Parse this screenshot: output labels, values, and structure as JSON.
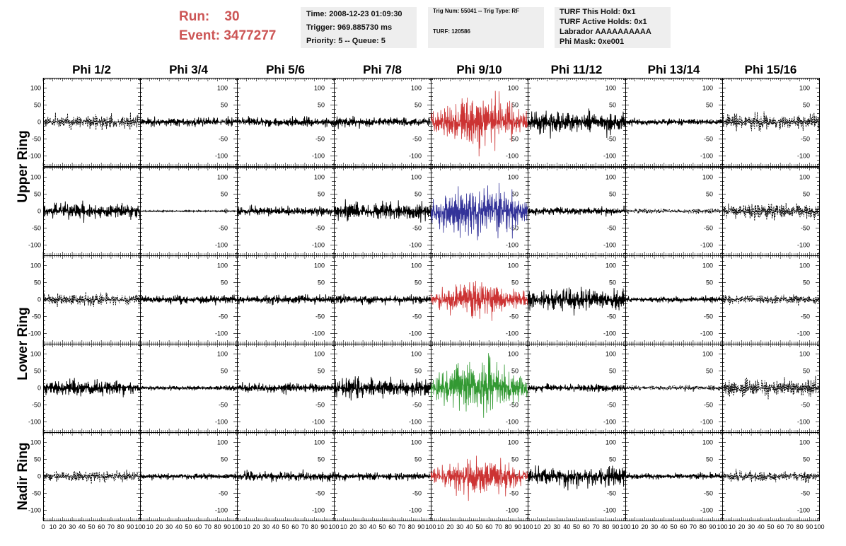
{
  "header": {
    "run_label": "Run:",
    "run_value": "30",
    "event_label": "Event:",
    "event_value": "3477277",
    "time_line": "Time: 2008-12-23 01:09:30",
    "trigger_line": "Trigger: 969.885730 ms",
    "priority_line": "Priority: 5 -- Queue: 5",
    "trig_line": "Trig Num: 55041 -- Trig Type: RF",
    "turf_line": "TURF: 120586",
    "turf_hold": "TURF This Hold: 0x1",
    "turf_active": "TURF Active Holds: 0x1",
    "labrador": "Labrador AAAAAAAAAA",
    "phi_mask": "Phi Mask: 0xe001",
    "accent_color": "#cc5555"
  },
  "chart_data": {
    "type": "line",
    "columns": [
      "Phi 1/2",
      "Phi 3/4",
      "Phi 5/6",
      "Phi 7/8",
      "Phi 9/10",
      "Phi 11/12",
      "Phi 13/14",
      "Phi 15/16"
    ],
    "rows": [
      "Upper Ring",
      "Upper Ring",
      "Lower Ring",
      "Lower Ring",
      "Nadir Ring"
    ],
    "ring_labels": [
      "Upper Ring",
      "Lower Ring",
      "Nadir Ring"
    ],
    "xlim": [
      0,
      100
    ],
    "ylim": [
      -130,
      130
    ],
    "x_ticks": [
      0,
      10,
      20,
      30,
      40,
      50,
      60,
      70,
      80,
      90,
      100
    ],
    "y_ticks": [
      100,
      50,
      0,
      -50,
      -100
    ],
    "highlight_colors": [
      "#cc3333",
      "#333399",
      "#cc3333",
      "#339933",
      "#cc3333"
    ],
    "amplitudes": [
      [
        18,
        12,
        13,
        12,
        70,
        28,
        9,
        22
      ],
      [
        20,
        2,
        12,
        25,
        75,
        10,
        7,
        22
      ],
      [
        16,
        11,
        12,
        12,
        50,
        28,
        8,
        12
      ],
      [
        20,
        6,
        12,
        25,
        75,
        10,
        7,
        22
      ],
      [
        15,
        8,
        12,
        10,
        50,
        25,
        8,
        14
      ]
    ],
    "dashed": [
      [
        true,
        false,
        false,
        false,
        false,
        false,
        false,
        true
      ],
      [
        false,
        false,
        false,
        false,
        false,
        false,
        true,
        true
      ],
      [
        true,
        false,
        false,
        false,
        false,
        false,
        false,
        true
      ],
      [
        false,
        false,
        false,
        false,
        false,
        false,
        true,
        true
      ],
      [
        true,
        false,
        false,
        false,
        false,
        false,
        false,
        true
      ]
    ]
  }
}
